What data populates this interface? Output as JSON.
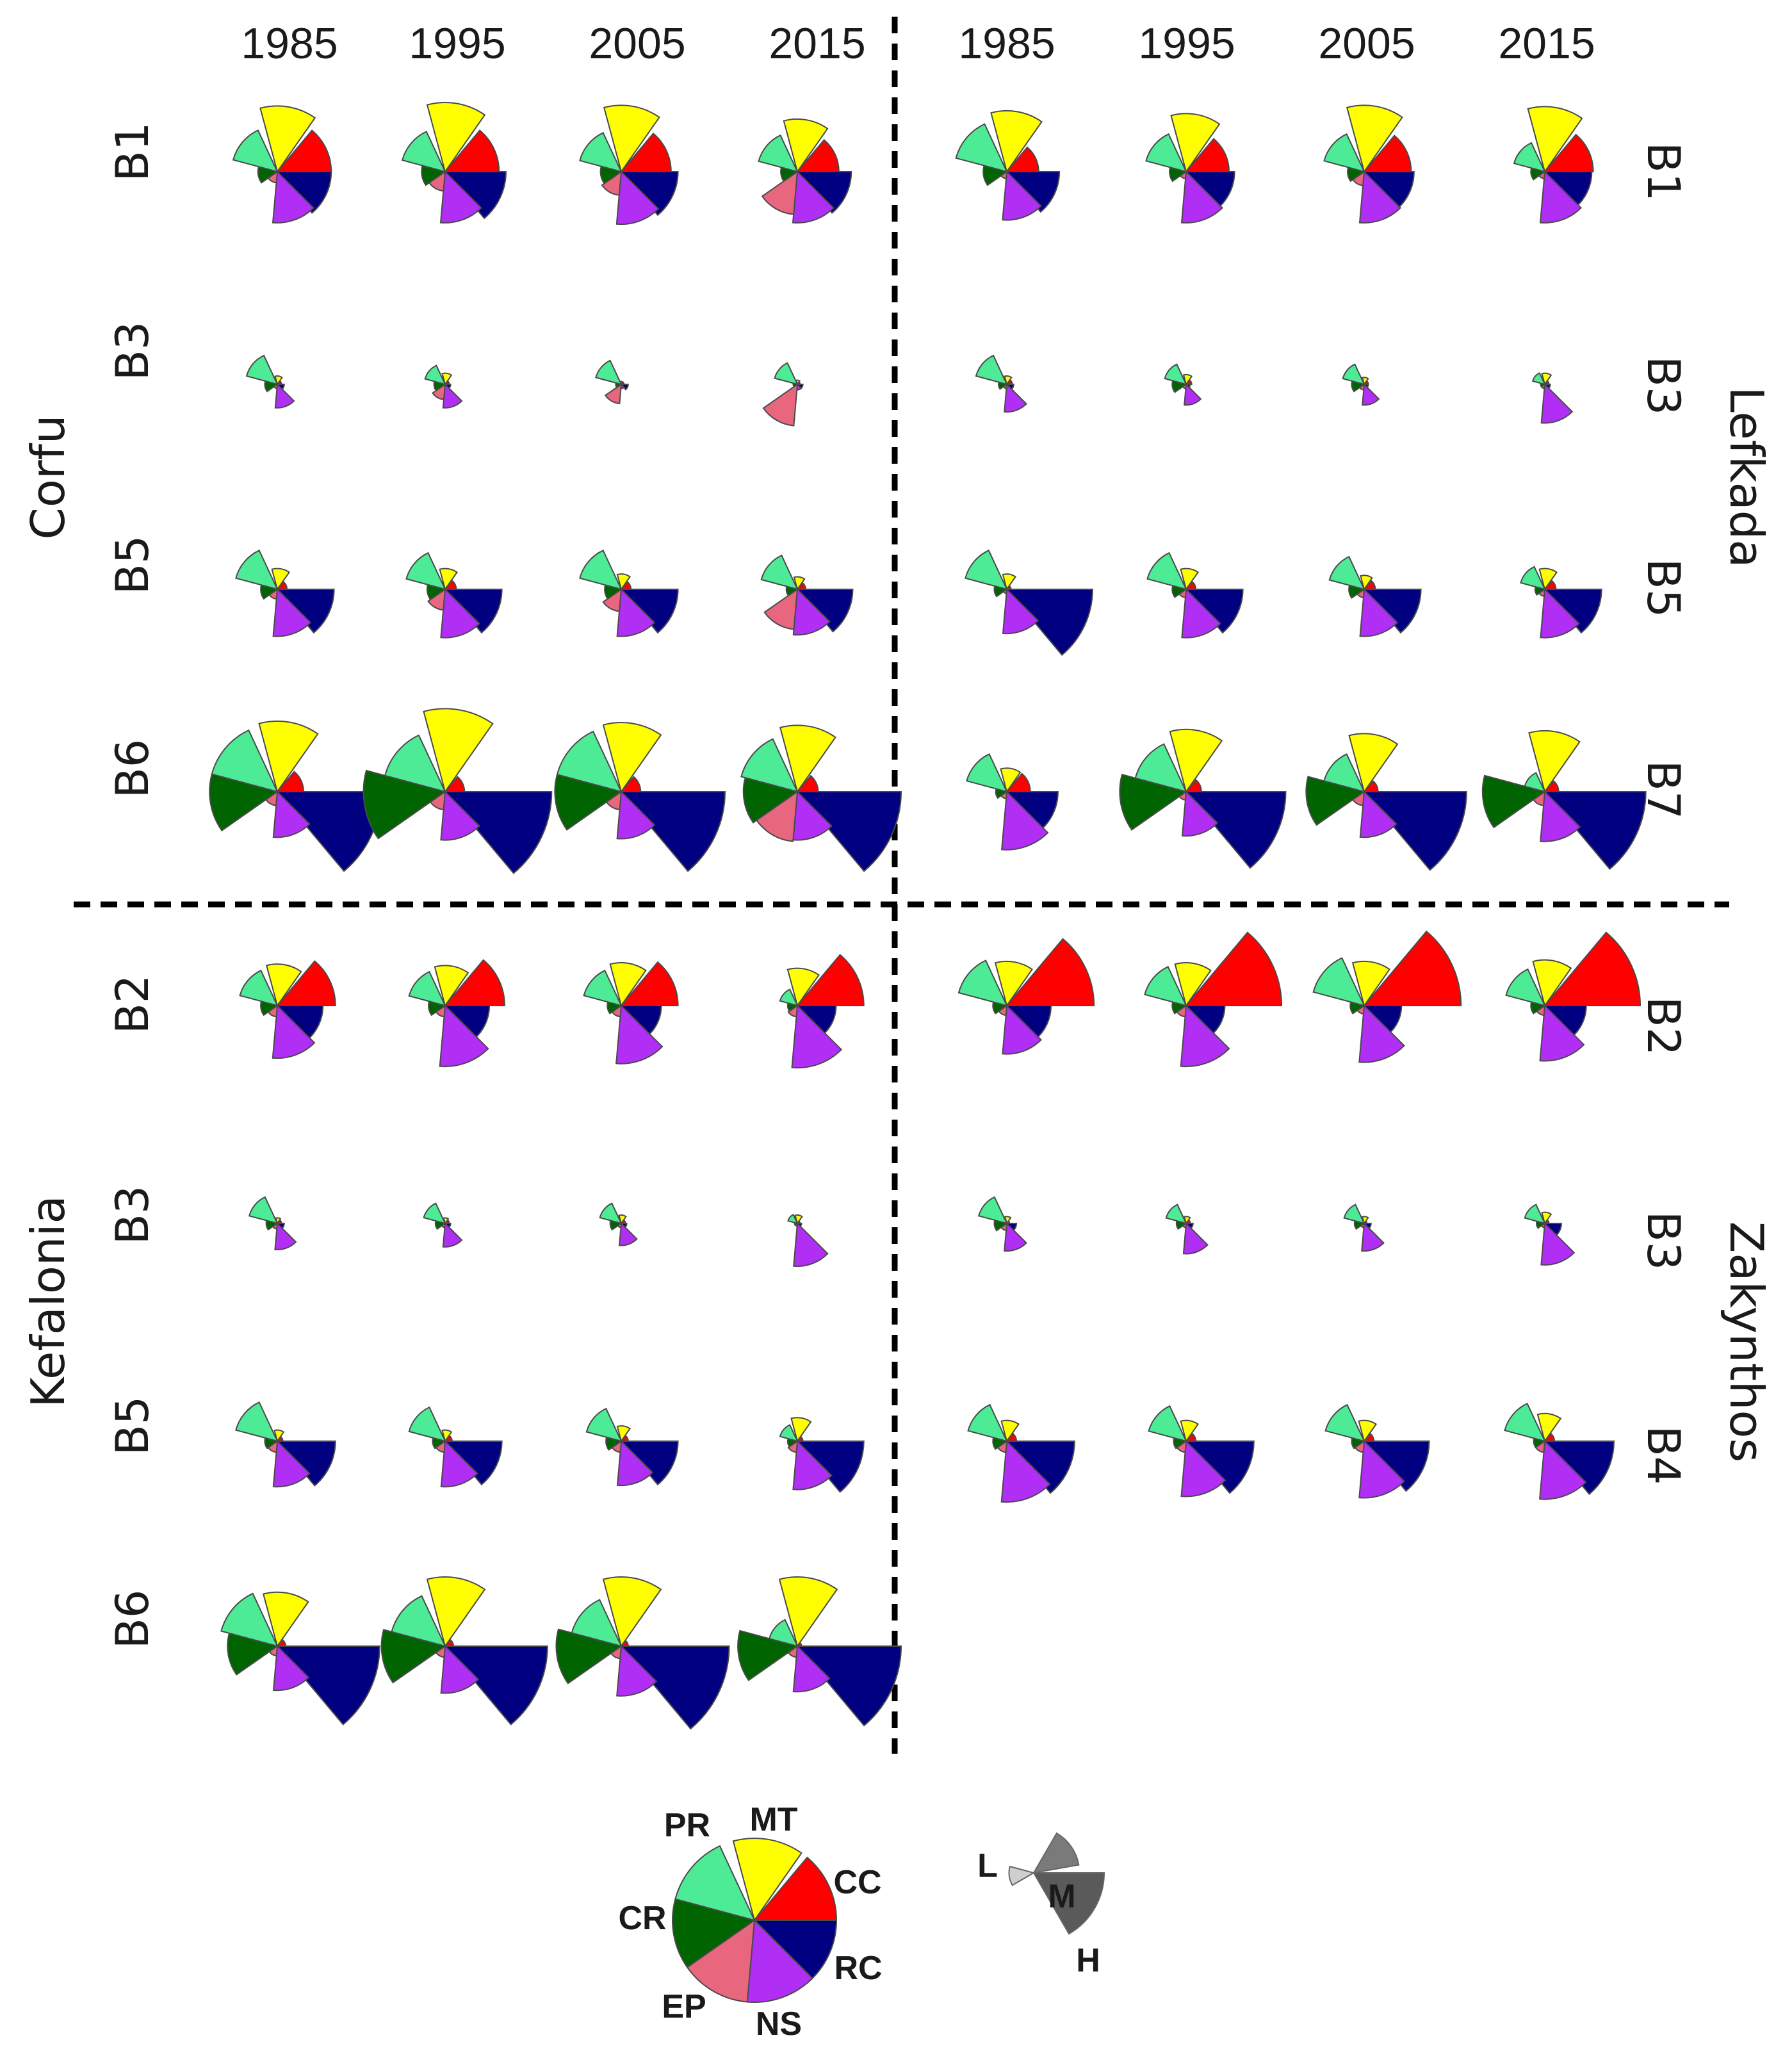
{
  "chart_data": {
    "type": "rose",
    "title": "",
    "years": [
      "1985",
      "1995",
      "2005",
      "2015"
    ],
    "categories": [
      "MT",
      "CC",
      "RC",
      "NS",
      "EP",
      "CR",
      "PR"
    ],
    "category_colors": {
      "MT": "#ffff00",
      "CC": "#ff0000",
      "RC": "#000080",
      "NS": "#b12ef5",
      "EP": "#e8677f",
      "CR": "#006400",
      "PR": "#4eeb96"
    },
    "size_legend": {
      "levels": [
        "L",
        "M",
        "H"
      ],
      "values": [
        0.35,
        0.65,
        1.0
      ],
      "color": "#5a5a5a"
    },
    "panels": [
      {
        "island": "Corfu",
        "rows": [
          {
            "label": "B1",
            "values": [
              [
                0.95,
                0.78,
                0.78,
                0.74,
                0.16,
                0.28,
                0.66
              ],
              [
                1.0,
                0.78,
                0.88,
                0.74,
                0.28,
                0.34,
                0.64
              ],
              [
                0.96,
                0.72,
                0.82,
                0.76,
                0.34,
                0.3,
                0.62
              ],
              [
                0.76,
                0.6,
                0.78,
                0.74,
                0.62,
                0.24,
                0.58
              ]
            ]
          },
          {
            "label": "B3",
            "values": [
              [
                0.12,
                0.06,
                0.1,
                0.34,
                0.06,
                0.18,
                0.46
              ],
              [
                0.16,
                0.06,
                0.08,
                0.34,
                0.22,
                0.16,
                0.3
              ],
              [
                0.04,
                0.04,
                0.1,
                0.06,
                0.28,
                0.08,
                0.38
              ],
              [
                0.06,
                0.04,
                0.08,
                0.08,
                0.6,
                0.06,
                0.34
              ]
            ]
          },
          {
            "label": "B5",
            "values": [
              [
                0.3,
                0.14,
                0.82,
                0.68,
                0.14,
                0.24,
                0.62
              ],
              [
                0.3,
                0.16,
                0.82,
                0.7,
                0.3,
                0.26,
                0.58
              ],
              [
                0.22,
                0.14,
                0.82,
                0.68,
                0.32,
                0.24,
                0.62
              ],
              [
                0.18,
                0.12,
                0.8,
                0.66,
                0.58,
                0.16,
                0.54
              ]
            ]
          },
          {
            "label": "B6",
            "values": [
              [
                1.02,
                0.38,
                1.5,
                0.66,
                0.2,
                0.98,
                0.98
              ],
              [
                1.2,
                0.28,
                1.54,
                0.7,
                0.26,
                1.18,
                0.9
              ],
              [
                1.0,
                0.28,
                1.5,
                0.68,
                0.26,
                0.96,
                0.96
              ],
              [
                0.96,
                0.3,
                1.5,
                0.7,
                0.72,
                0.78,
                0.84
              ]
            ]
          }
        ]
      },
      {
        "island": "Lefkada",
        "rows": [
          {
            "label": "B1",
            "values": [
              [
                0.88,
                0.46,
                0.76,
                0.7,
                0.1,
                0.34,
                0.76
              ],
              [
                0.84,
                0.62,
                0.7,
                0.74,
                0.1,
                0.24,
                0.6
              ],
              [
                0.96,
                0.68,
                0.72,
                0.74,
                0.2,
                0.24,
                0.6
              ],
              [
                0.94,
                0.7,
                0.68,
                0.74,
                0.1,
                0.2,
                0.46
              ]
            ]
          },
          {
            "label": "B3",
            "values": [
              [
                0.12,
                0.08,
                0.1,
                0.4,
                0.06,
                0.12,
                0.46
              ],
              [
                0.14,
                0.08,
                0.06,
                0.3,
                0.06,
                0.2,
                0.32
              ],
              [
                0.1,
                0.06,
                0.06,
                0.3,
                0.08,
                0.18,
                0.32
              ],
              [
                0.16,
                0.06,
                0.08,
                0.56,
                0.06,
                0.06,
                0.18
              ]
            ]
          },
          {
            "label": "B5",
            "values": [
              [
                0.22,
                0.06,
                1.24,
                0.64,
                0.06,
                0.18,
                0.62
              ],
              [
                0.3,
                0.14,
                0.82,
                0.7,
                0.12,
                0.2,
                0.58
              ],
              [
                0.2,
                0.16,
                0.82,
                0.68,
                0.12,
                0.22,
                0.52
              ],
              [
                0.3,
                0.16,
                0.82,
                0.7,
                0.1,
                0.14,
                0.36
              ]
            ]
          },
          {
            "label": "B7",
            "values": [
              [
                0.34,
                0.34,
                0.74,
                0.84,
                0.1,
                0.16,
                0.6
              ],
              [
                0.9,
                0.22,
                1.44,
                0.64,
                0.12,
                0.96,
                0.76
              ],
              [
                0.84,
                0.2,
                1.48,
                0.66,
                0.2,
                0.84,
                0.6
              ],
              [
                0.88,
                0.2,
                1.46,
                0.72,
                0.2,
                0.9,
                0.3
              ]
            ]
          }
        ]
      },
      {
        "island": "Kefalonia",
        "rows": [
          {
            "label": "B2",
            "values": [
              [
                0.6,
                0.84,
                0.66,
                0.76,
                0.16,
                0.24,
                0.56
              ],
              [
                0.58,
                0.86,
                0.64,
                0.88,
                0.16,
                0.24,
                0.54
              ],
              [
                0.62,
                0.82,
                0.58,
                0.84,
                0.16,
                0.2,
                0.56
              ],
              [
                0.54,
                0.96,
                0.56,
                0.9,
                0.16,
                0.14,
                0.26
              ]
            ]
          },
          {
            "label": "B3",
            "values": [
              [
                0.08,
                0.06,
                0.1,
                0.38,
                0.08,
                0.16,
                0.42
              ],
              [
                0.08,
                0.06,
                0.08,
                0.34,
                0.06,
                0.14,
                0.32
              ],
              [
                0.12,
                0.06,
                0.08,
                0.32,
                0.06,
                0.16,
                0.32
              ],
              [
                0.12,
                0.04,
                0.06,
                0.62,
                0.04,
                0.04,
                0.14
              ]
            ]
          },
          {
            "label": "B5",
            "values": [
              [
                0.16,
                0.08,
                0.84,
                0.66,
                0.16,
                0.18,
                0.62
              ],
              [
                0.16,
                0.1,
                0.82,
                0.66,
                0.16,
                0.18,
                0.54
              ],
              [
                0.22,
                0.1,
                0.82,
                0.64,
                0.16,
                0.22,
                0.52
              ],
              [
                0.34,
                0.08,
                0.96,
                0.7,
                0.16,
                0.14,
                0.26
              ]
            ]
          },
          {
            "label": "B6",
            "values": [
              [
                0.78,
                0.12,
                1.48,
                0.64,
                0.14,
                0.72,
                0.84
              ],
              [
                1.0,
                0.12,
                1.48,
                0.68,
                0.16,
                0.92,
                0.8
              ],
              [
                1.0,
                0.1,
                1.56,
                0.72,
                0.18,
                0.94,
                0.74
              ],
              [
                1.0,
                0.06,
                1.5,
                0.66,
                0.16,
                0.86,
                0.42
              ]
            ]
          }
        ]
      },
      {
        "island": "Zakynthos",
        "rows": [
          {
            "label": "B2",
            "values": [
              [
                0.64,
                1.26,
                0.64,
                0.7,
                0.14,
                0.2,
                0.72
              ],
              [
                0.62,
                1.38,
                0.56,
                0.88,
                0.16,
                0.2,
                0.62
              ],
              [
                0.64,
                1.4,
                0.54,
                0.82,
                0.12,
                0.2,
                0.76
              ],
              [
                0.66,
                1.38,
                0.6,
                0.8,
                0.14,
                0.2,
                0.58
              ]
            ]
          },
          {
            "label": "B3",
            "values": [
              [
                0.1,
                0.04,
                0.14,
                0.4,
                0.1,
                0.18,
                0.42
              ],
              [
                0.1,
                0.06,
                0.1,
                0.44,
                0.06,
                0.14,
                0.3
              ],
              [
                0.1,
                0.04,
                0.1,
                0.4,
                0.06,
                0.14,
                0.3
              ],
              [
                0.16,
                0.06,
                0.24,
                0.6,
                0.06,
                0.12,
                0.3
              ]
            ]
          },
          {
            "label": "B4",
            "values": [
              [
                0.3,
                0.14,
                0.98,
                0.88,
                0.16,
                0.2,
                0.58
              ],
              [
                0.3,
                0.14,
                0.98,
                0.8,
                0.16,
                0.18,
                0.56
              ],
              [
                0.3,
                0.14,
                0.94,
                0.82,
                0.16,
                0.18,
                0.58
              ],
              [
                0.4,
                0.14,
                1.0,
                0.84,
                0.16,
                0.16,
                0.6
              ]
            ]
          }
        ]
      }
    ]
  }
}
